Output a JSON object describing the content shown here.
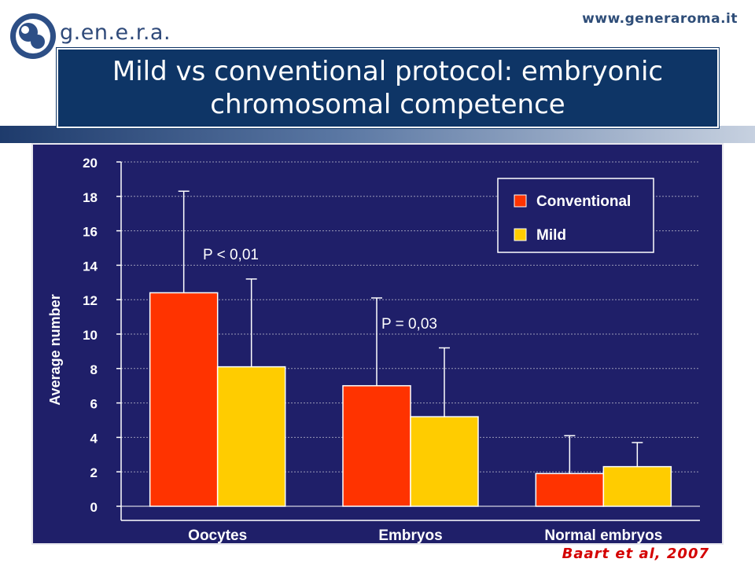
{
  "header": {
    "logo_text": "g.en.e.r.a.",
    "url": "www.generaroma.it",
    "title": "Mild vs conventional protocol: embryonic chromosomal competence"
  },
  "source": "Baart et al, 2007",
  "colors": {
    "conventional": "#ff3300",
    "mild": "#ffcc00",
    "panel": "#1f1f69",
    "title_bg": "#0e3566"
  },
  "chart_data": {
    "type": "bar",
    "categories": [
      "Oocytes",
      "Embryos",
      "Normal embryos"
    ],
    "series": [
      {
        "name": "Conventional",
        "values": [
          12.4,
          7.0,
          1.9
        ],
        "error": [
          5.9,
          5.1,
          2.2
        ]
      },
      {
        "name": "Mild",
        "values": [
          8.1,
          5.2,
          2.3
        ],
        "error": [
          5.1,
          4.0,
          1.4
        ]
      }
    ],
    "ylabel": "Average number",
    "xlabel": "",
    "ylim": [
      0,
      20
    ],
    "yticks": [
      0,
      2,
      4,
      6,
      8,
      10,
      12,
      14,
      16,
      18,
      20
    ],
    "grid": true,
    "legend_position": "top-right",
    "annotations": [
      "P < 0,01",
      "P = 0,03"
    ]
  }
}
